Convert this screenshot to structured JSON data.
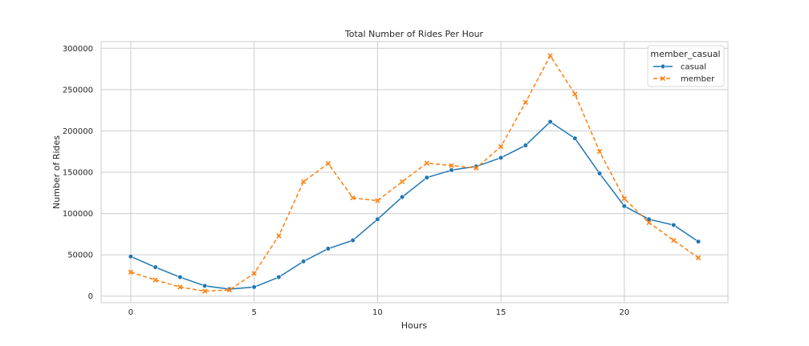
{
  "chart_data": {
    "type": "line",
    "title": "Total Number of Rides Per Hour",
    "xlabel": "Hours",
    "ylabel": "Number of Rides",
    "x": [
      0,
      1,
      2,
      3,
      4,
      5,
      6,
      7,
      8,
      9,
      10,
      11,
      12,
      13,
      14,
      15,
      16,
      17,
      18,
      19,
      20,
      21,
      22,
      23
    ],
    "xlim": [
      -1.2,
      24.2
    ],
    "ylim": [
      -8000,
      308000
    ],
    "xticks": [
      0,
      5,
      10,
      15,
      20
    ],
    "yticks": [
      0,
      50000,
      100000,
      150000,
      200000,
      250000,
      300000
    ],
    "grid": true,
    "legend": {
      "title": "member_casual",
      "position": "top-right"
    },
    "series": [
      {
        "name": "casual",
        "color": "#1f77b4",
        "marker": "circle",
        "dash": "solid",
        "values": [
          48000,
          35000,
          23000,
          12500,
          8500,
          11000,
          23000,
          42000,
          57500,
          67500,
          93000,
          120000,
          143500,
          152500,
          157000,
          167500,
          182500,
          211000,
          191000,
          148500,
          109000,
          93000,
          86000,
          66000
        ]
      },
      {
        "name": "member",
        "color": "#ff7f0e",
        "marker": "x",
        "dash": "dashed",
        "values": [
          29000,
          19500,
          11000,
          6000,
          7500,
          27500,
          73000,
          138500,
          160500,
          119000,
          115500,
          138500,
          161000,
          158000,
          155000,
          181000,
          234500,
          291000,
          244500,
          175000,
          118000,
          89000,
          67500,
          46500
        ]
      }
    ]
  }
}
